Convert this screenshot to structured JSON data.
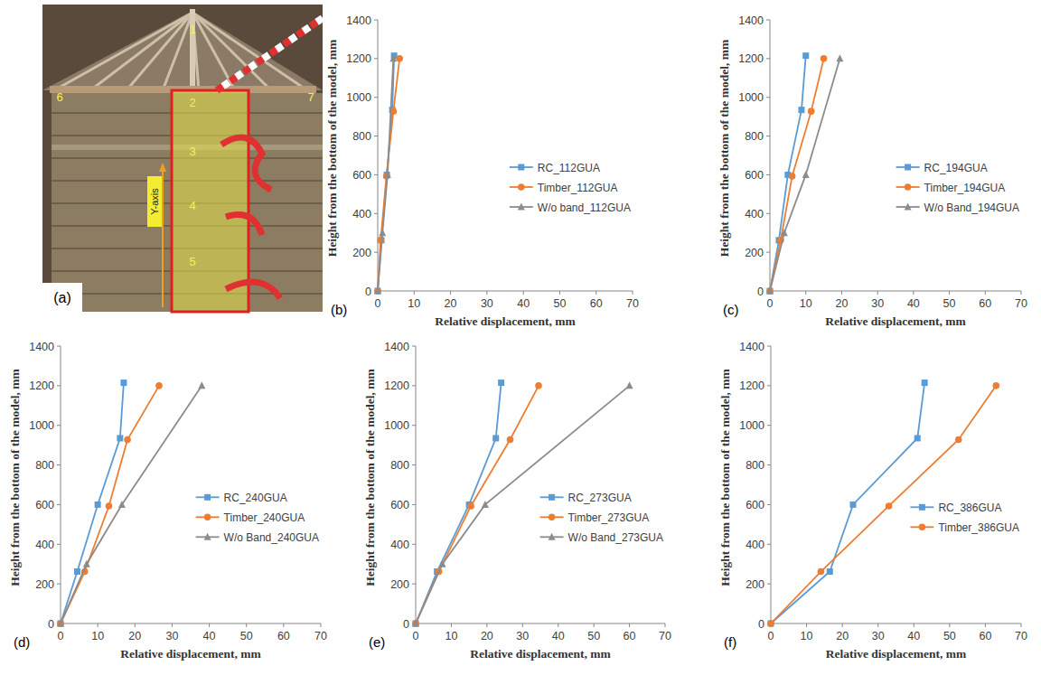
{
  "photo": {
    "label": "(a)",
    "axis_label": "Y-axis",
    "point_labels": [
      "1",
      "2",
      "3",
      "4",
      "5",
      "6",
      "7"
    ]
  },
  "chart_data": [
    {
      "type": "line",
      "title": "(b)",
      "x_label": "Relative displacement, mm",
      "y_label": "Height from the bottom of the model, mm",
      "xlim": [
        0,
        70
      ],
      "xticks": [
        0,
        10,
        20,
        30,
        40,
        50,
        60,
        70
      ],
      "ylim": [
        0,
        1400
      ],
      "yticks": [
        0,
        200,
        400,
        600,
        800,
        1000,
        1200,
        1400
      ],
      "grid": false,
      "legend": "right",
      "series": [
        {
          "name": "RC_112GUA",
          "color": "#5b9bd5",
          "marker": "square",
          "x": [
            0,
            1,
            2.5,
            4,
            4.5
          ],
          "values": [
            0,
            262,
            600,
            935,
            1215
          ]
        },
        {
          "name": "Timber_112GUA",
          "color": "#ed7d31",
          "marker": "circle",
          "x": [
            0,
            0.8,
            2.4,
            4.3,
            6
          ],
          "values": [
            0,
            262,
            593,
            928,
            1200
          ]
        },
        {
          "name": "W/o band_112GUA",
          "color": "#8c8c8c",
          "marker": "triangle",
          "x": [
            0,
            1.3,
            2.7,
            4.3
          ],
          "values": [
            0,
            300,
            600,
            1200
          ]
        }
      ]
    },
    {
      "type": "line",
      "title": "(c)",
      "x_label": "Relative displacement, mm",
      "y_label": "Height from the bottom of the model, mm",
      "xlim": [
        0,
        70
      ],
      "xticks": [
        0,
        10,
        20,
        30,
        40,
        50,
        60,
        70
      ],
      "ylim": [
        0,
        1400
      ],
      "yticks": [
        0,
        200,
        400,
        600,
        800,
        1000,
        1200,
        1400
      ],
      "grid": false,
      "legend": "right",
      "series": [
        {
          "name": "RC_194GUA",
          "color": "#5b9bd5",
          "marker": "square",
          "x": [
            0,
            2.5,
            5,
            8.8,
            10
          ],
          "values": [
            0,
            262,
            600,
            935,
            1215
          ]
        },
        {
          "name": "Timber_194GUA",
          "color": "#ed7d31",
          "marker": "circle",
          "x": [
            0,
            3,
            6.2,
            11.5,
            15
          ],
          "values": [
            0,
            262,
            593,
            928,
            1200
          ]
        },
        {
          "name": "W/o Band_194GUA",
          "color": "#8c8c8c",
          "marker": "triangle",
          "x": [
            0,
            4,
            10,
            19.5
          ],
          "values": [
            0,
            300,
            600,
            1200
          ]
        }
      ]
    },
    {
      "type": "line",
      "title": "(d)",
      "x_label": "Relative displacement, mm",
      "y_label": "Height from the bottom of the model, mm",
      "xlim": [
        0,
        70
      ],
      "xticks": [
        0,
        10,
        20,
        30,
        40,
        50,
        60,
        70
      ],
      "ylim": [
        0,
        1400
      ],
      "yticks": [
        0,
        200,
        400,
        600,
        800,
        1000,
        1200,
        1400
      ],
      "grid": false,
      "legend": "right",
      "series": [
        {
          "name": "RC_240GUA",
          "color": "#5b9bd5",
          "marker": "square",
          "x": [
            0,
            4.5,
            10,
            16,
            17
          ],
          "values": [
            0,
            262,
            600,
            935,
            1215
          ]
        },
        {
          "name": "Timber_240GUA",
          "color": "#ed7d31",
          "marker": "circle",
          "x": [
            0,
            6.5,
            13,
            18,
            26.5
          ],
          "values": [
            0,
            262,
            593,
            928,
            1200
          ]
        },
        {
          "name": "W/o Band_240GUA",
          "color": "#8c8c8c",
          "marker": "triangle",
          "x": [
            0,
            7,
            16.5,
            38
          ],
          "values": [
            0,
            300,
            600,
            1200
          ]
        }
      ]
    },
    {
      "type": "line",
      "title": "(e)",
      "x_label": "Relative displacement, mm",
      "y_label": "Height from the bottom of the model, mm",
      "xlim": [
        0,
        70
      ],
      "xticks": [
        0,
        10,
        20,
        30,
        40,
        50,
        60,
        70
      ],
      "ylim": [
        0,
        1400
      ],
      "yticks": [
        0,
        200,
        400,
        600,
        800,
        1000,
        1200,
        1400
      ],
      "grid": false,
      "legend": "right",
      "series": [
        {
          "name": "RC_273GUA",
          "color": "#5b9bd5",
          "marker": "square",
          "x": [
            0,
            6,
            15,
            22.5,
            24
          ],
          "values": [
            0,
            262,
            600,
            935,
            1215
          ]
        },
        {
          "name": "Timber_273GUA",
          "color": "#ed7d31",
          "marker": "circle",
          "x": [
            0,
            6.5,
            15.5,
            26.5,
            34.5
          ],
          "values": [
            0,
            262,
            593,
            928,
            1200
          ]
        },
        {
          "name": "W/o Band_273GUA",
          "color": "#8c8c8c",
          "marker": "triangle",
          "x": [
            0,
            7.5,
            19.5,
            60
          ],
          "values": [
            0,
            300,
            600,
            1200
          ]
        }
      ]
    },
    {
      "type": "line",
      "title": "(f)",
      "x_label": "Relative displacement, mm",
      "y_label": "Height from the bottom of the model, mm",
      "xlim": [
        0,
        70
      ],
      "xticks": [
        0,
        10,
        20,
        30,
        40,
        50,
        60,
        70
      ],
      "ylim": [
        0,
        1400
      ],
      "yticks": [
        0,
        200,
        400,
        600,
        800,
        1000,
        1200,
        1400
      ],
      "grid": false,
      "legend": "right",
      "series": [
        {
          "name": "RC_386GUA",
          "color": "#5b9bd5",
          "marker": "square",
          "x": [
            0,
            16.5,
            23,
            41,
            43
          ],
          "values": [
            0,
            262,
            600,
            935,
            1215
          ]
        },
        {
          "name": "Timber_386GUA",
          "color": "#ed7d31",
          "marker": "circle",
          "x": [
            0,
            14,
            33,
            52.5,
            63
          ],
          "values": [
            0,
            262,
            593,
            928,
            1200
          ]
        }
      ]
    }
  ]
}
